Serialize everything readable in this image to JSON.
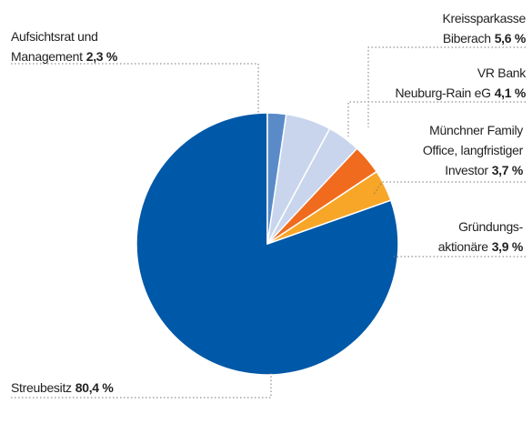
{
  "chart_data": {
    "type": "pie",
    "categories": [
      "Aufsichtsrat und\nManagement",
      "Kreissparkasse\nBiberach",
      "VR Bank\nNeuburg-Rain eG",
      "Münchner Family\nOffice, langfristiger\nInvestor",
      "Gründungs-\naktionäre",
      "Streubesitz"
    ],
    "values": [
      2.3,
      5.6,
      4.1,
      3.7,
      3.9,
      80.4
    ],
    "value_labels": [
      "2,3 %",
      "5,6 %",
      "4,1 %",
      "3,7 %",
      "3,9 %",
      "80,4 %"
    ],
    "colors": [
      "#5a8bc8",
      "#c9d5ed",
      "#c9d5ed",
      "#f06b1e",
      "#f7a628",
      "#0058a8"
    ]
  }
}
